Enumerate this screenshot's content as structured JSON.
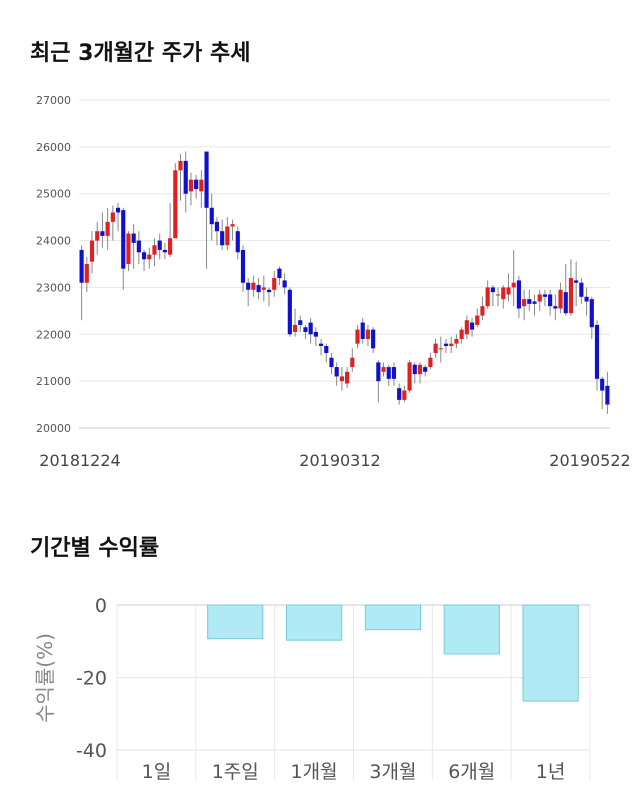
{
  "sections": {
    "candle_title": "최근 3개월간 주가 추세",
    "returns_title": "기간별 수익률"
  },
  "colors": {
    "up": "#dd2222",
    "down": "#1111cc",
    "wick": "#888888",
    "return_bar": "#b0ebf5",
    "return_bar_stroke": "#7cc8d8"
  },
  "chart_data": [
    {
      "type": "candlestick",
      "title": "최근 3개월간 주가 추세",
      "ylim": [
        20000,
        27000
      ],
      "y_ticks": [
        20000,
        21000,
        22000,
        23000,
        24000,
        25000,
        26000,
        27000
      ],
      "x_tick_labels": [
        "20181224",
        "20190312",
        "20190522"
      ],
      "grid": true,
      "candles": [
        [
          23800,
          23100,
          23900,
          22300
        ],
        [
          23100,
          23500,
          23650,
          22900
        ],
        [
          23550,
          24000,
          24200,
          23300
        ],
        [
          24000,
          24200,
          24400,
          23700
        ],
        [
          24200,
          24100,
          24600,
          23850
        ],
        [
          24100,
          24400,
          24700,
          23800
        ],
        [
          24400,
          24600,
          24750,
          24000
        ],
        [
          24700,
          24600,
          24800,
          24200
        ],
        [
          24650,
          23400,
          24700,
          22950
        ],
        [
          23500,
          24150,
          24200,
          23350
        ],
        [
          24150,
          23950,
          24350,
          23400
        ],
        [
          24000,
          23750,
          24200,
          23500
        ],
        [
          23750,
          23600,
          23800,
          23350
        ],
        [
          23600,
          23700,
          23850,
          23400
        ],
        [
          23700,
          23900,
          24050,
          23450
        ],
        [
          24000,
          23800,
          24150,
          23600
        ],
        [
          23800,
          23750,
          23950,
          23600
        ],
        [
          23700,
          24050,
          24800,
          23650
        ],
        [
          24050,
          25500,
          25650,
          24500
        ],
        [
          25500,
          25700,
          25850,
          24850
        ],
        [
          25700,
          25000,
          25900,
          24600
        ],
        [
          25050,
          25300,
          25450,
          24750
        ],
        [
          25300,
          25100,
          25400,
          24900
        ],
        [
          25050,
          25300,
          25500,
          24700
        ],
        [
          25900,
          24700,
          25900,
          23400
        ],
        [
          24700,
          24350,
          25000,
          24000
        ],
        [
          24400,
          24200,
          24500,
          23900
        ],
        [
          24200,
          23900,
          24450,
          23800
        ],
        [
          23900,
          24300,
          24500,
          23800
        ],
        [
          24300,
          24350,
          24450,
          24000
        ],
        [
          24200,
          23750,
          24300,
          23600
        ],
        [
          23800,
          23100,
          23900,
          22900
        ],
        [
          23100,
          22950,
          23200,
          22600
        ],
        [
          22950,
          23100,
          23250,
          22800
        ],
        [
          23050,
          22900,
          23200,
          22750
        ],
        [
          22950,
          23000,
          23250,
          22700
        ],
        [
          22950,
          22900,
          23000,
          22600
        ],
        [
          22950,
          23200,
          23350,
          22800
        ],
        [
          23400,
          23200,
          23450,
          23050
        ],
        [
          23150,
          23000,
          23300,
          22850
        ],
        [
          22950,
          22000,
          23000,
          21950
        ],
        [
          22050,
          22200,
          22550,
          21950
        ],
        [
          22300,
          22200,
          22400,
          22050
        ],
        [
          22150,
          22050,
          22200,
          21900
        ],
        [
          22250,
          22000,
          22350,
          21800
        ],
        [
          22050,
          21950,
          22150,
          21750
        ],
        [
          21800,
          21750,
          21900,
          21550
        ],
        [
          21750,
          21600,
          21800,
          21400
        ],
        [
          21500,
          21300,
          21600,
          21150
        ],
        [
          21300,
          21100,
          21400,
          20900
        ],
        [
          21000,
          21100,
          21300,
          20800
        ],
        [
          20950,
          21200,
          21300,
          20850
        ],
        [
          21300,
          21500,
          21700,
          21200
        ],
        [
          21800,
          22100,
          22200,
          21700
        ],
        [
          22250,
          21900,
          22350,
          21800
        ],
        [
          21900,
          22100,
          22200,
          21750
        ],
        [
          22100,
          21700,
          22150,
          21600
        ],
        [
          21400,
          21000,
          21450,
          20550
        ],
        [
          21200,
          21300,
          21400,
          21100
        ],
        [
          21300,
          21050,
          21350,
          20900
        ],
        [
          21300,
          21050,
          21400,
          20900
        ],
        [
          20850,
          20600,
          20950,
          20500
        ],
        [
          20600,
          20800,
          20900,
          20550
        ],
        [
          20800,
          21400,
          21450,
          20750
        ],
        [
          21350,
          21150,
          21400,
          20950
        ],
        [
          21150,
          21350,
          21400,
          20950
        ],
        [
          21300,
          21200,
          21350,
          21100
        ],
        [
          21300,
          21500,
          21600,
          21250
        ],
        [
          21600,
          21800,
          21900,
          21500
        ],
        [
          21700,
          21700,
          21950,
          21400
        ],
        [
          21800,
          21750,
          21900,
          21600
        ],
        [
          21750,
          21800,
          21950,
          21600
        ],
        [
          21800,
          21900,
          22000,
          21700
        ],
        [
          21900,
          22100,
          22150,
          21800
        ],
        [
          22000,
          22300,
          22400,
          21900
        ],
        [
          22250,
          22100,
          22350,
          21950
        ],
        [
          22200,
          22400,
          22550,
          22150
        ],
        [
          22400,
          22600,
          22800,
          22300
        ],
        [
          22600,
          23000,
          23150,
          22550
        ],
        [
          23000,
          22900,
          23050,
          22600
        ],
        [
          22850,
          22850,
          23000,
          22600
        ],
        [
          22750,
          23000,
          23050,
          22550
        ],
        [
          22850,
          23000,
          23300,
          22700
        ],
        [
          23000,
          23100,
          23800,
          22600
        ],
        [
          23150,
          22550,
          23250,
          22350
        ],
        [
          22600,
          22750,
          22950,
          22300
        ],
        [
          22750,
          22650,
          22950,
          22500
        ],
        [
          22700,
          22650,
          22850,
          22400
        ],
        [
          22700,
          22850,
          22950,
          22500
        ],
        [
          22850,
          22800,
          22950,
          22600
        ],
        [
          22850,
          22600,
          22950,
          22400
        ],
        [
          22600,
          22550,
          22850,
          22300
        ],
        [
          22550,
          22950,
          23100,
          22450
        ],
        [
          22900,
          22450,
          23500,
          22400
        ],
        [
          22450,
          23200,
          23600,
          22400
        ],
        [
          23150,
          23100,
          23550,
          22600
        ],
        [
          23100,
          22800,
          23200,
          22650
        ],
        [
          22800,
          22700,
          23000,
          22400
        ],
        [
          22750,
          22150,
          22800,
          21900
        ],
        [
          22200,
          21050,
          22300,
          20800
        ],
        [
          21050,
          20800,
          21100,
          20400
        ],
        [
          20900,
          20500,
          21200,
          20300
        ]
      ]
    },
    {
      "type": "bar",
      "title": "기간별 수익률",
      "categories": [
        "1일",
        "1주일",
        "1개월",
        "3개월",
        "6개월",
        "1년"
      ],
      "values": [
        0,
        -9.3,
        -9.7,
        -6.8,
        -13.5,
        -26.5
      ],
      "ylabel": "수익률(%)",
      "ylim": [
        -40,
        0
      ],
      "y_ticks": [
        0,
        -20,
        -40
      ],
      "grid": true
    }
  ]
}
